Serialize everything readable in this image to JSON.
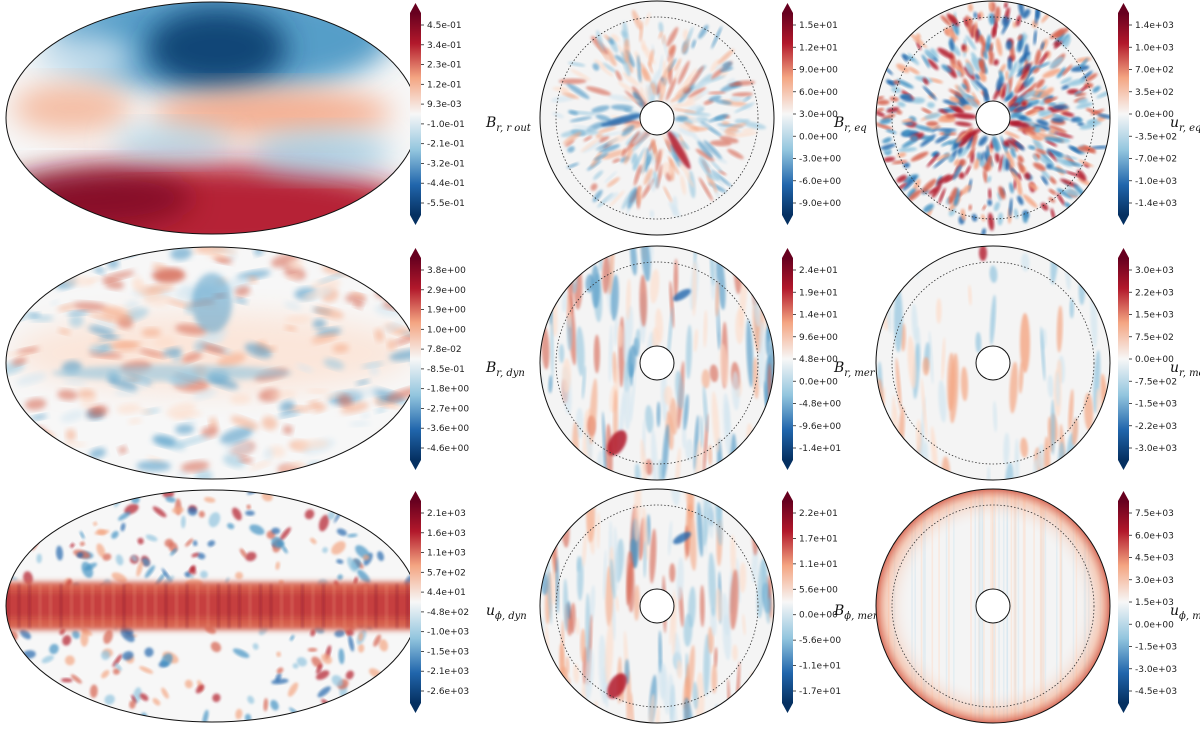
{
  "panels": [
    {
      "id": "br-rout",
      "kind": "hammer",
      "label": "B",
      "label_sub": "r, r out",
      "row": 0,
      "col": 0,
      "ticks": [
        "4.5e-01",
        "3.4e-01",
        "2.3e-01",
        "1.2e-01",
        "9.3e-03",
        "-1.0e-01",
        "-2.1e-01",
        "-3.2e-01",
        "-4.4e-01",
        "-5.5e-01"
      ],
      "style": "large-scale"
    },
    {
      "id": "br-eq",
      "kind": "disk",
      "label": "B",
      "label_sub": "r, eq",
      "row": 0,
      "col": 1,
      "ticks": [
        "1.5e+01",
        "1.2e+01",
        "9.0e+00",
        "6.0e+00",
        "3.0e+00",
        "0.0e+00",
        "-3.0e+00",
        "-6.0e+00",
        "-9.0e+00"
      ],
      "style": "radial-weak"
    },
    {
      "id": "ur-eq",
      "kind": "disk",
      "label": "u",
      "label_sub": "r, eq",
      "row": 0,
      "col": 2,
      "ticks": [
        "1.4e+03",
        "1.0e+03",
        "7.0e+02",
        "3.5e+02",
        "0.0e+00",
        "-3.5e+02",
        "-7.0e+02",
        "-1.0e+03",
        "-1.4e+03"
      ],
      "style": "radial-strong"
    },
    {
      "id": "br-dyn",
      "kind": "hammer",
      "label": "B",
      "label_sub": "r, dyn",
      "row": 1,
      "col": 0,
      "ticks": [
        "3.8e+00",
        "2.9e+00",
        "1.9e+00",
        "1.0e+00",
        "7.8e-02",
        "-8.5e-01",
        "-1.8e+00",
        "-2.7e+00",
        "-3.6e+00",
        "-4.6e+00"
      ],
      "style": "small-scale"
    },
    {
      "id": "br-mer",
      "kind": "disk",
      "label": "B",
      "label_sub": "r, mer",
      "row": 1,
      "col": 1,
      "ticks": [
        "2.4e+01",
        "1.9e+01",
        "1.4e+01",
        "9.6e+00",
        "4.8e+00",
        "0.0e+00",
        "-4.8e+00",
        "-9.6e+00",
        "-1.4e+01"
      ],
      "style": "columnar"
    },
    {
      "id": "ur-mer",
      "kind": "disk",
      "label": "u",
      "label_sub": "r, mer",
      "row": 1,
      "col": 2,
      "ticks": [
        "3.0e+03",
        "2.2e+03",
        "1.5e+03",
        "7.5e+02",
        "0.0e+00",
        "-7.5e+02",
        "-1.5e+03",
        "-2.2e+03",
        "-3.0e+03"
      ],
      "style": "columnar-faint"
    },
    {
      "id": "uphi-dyn",
      "kind": "hammer",
      "label": "u",
      "label_sub": "ϕ, dyn",
      "row": 2,
      "col": 0,
      "ticks": [
        "2.1e+03",
        "1.6e+03",
        "1.1e+03",
        "5.7e+02",
        "4.4e+01",
        "-4.8e+02",
        "-1.0e+03",
        "-1.5e+03",
        "-2.1e+03",
        "-2.6e+03"
      ],
      "style": "equatorial-jet"
    },
    {
      "id": "bphi-mer",
      "kind": "disk",
      "label": "B",
      "label_sub": "ϕ, mer",
      "row": 2,
      "col": 1,
      "ticks": [
        "2.2e+01",
        "1.7e+01",
        "1.1e+01",
        "5.6e+00",
        "0.0e+00",
        "-5.6e+00",
        "-1.1e+01",
        "-1.7e+01"
      ],
      "style": "columnar"
    },
    {
      "id": "uphi-mer",
      "kind": "disk",
      "label": "u",
      "label_sub": "ϕ, mer",
      "row": 2,
      "col": 2,
      "ticks": [
        "7.5e+03",
        "6.0e+03",
        "4.5e+03",
        "3.0e+03",
        "1.5e+03",
        "0.0e+00",
        "-1.5e+03",
        "-3.0e+03",
        "-4.5e+03"
      ],
      "style": "outer-rim"
    }
  ],
  "colormap": {
    "max": "#67001f",
    "high": "#d6604d",
    "mid": "#f7f7f7",
    "low": "#4393c3",
    "min": "#053061"
  }
}
